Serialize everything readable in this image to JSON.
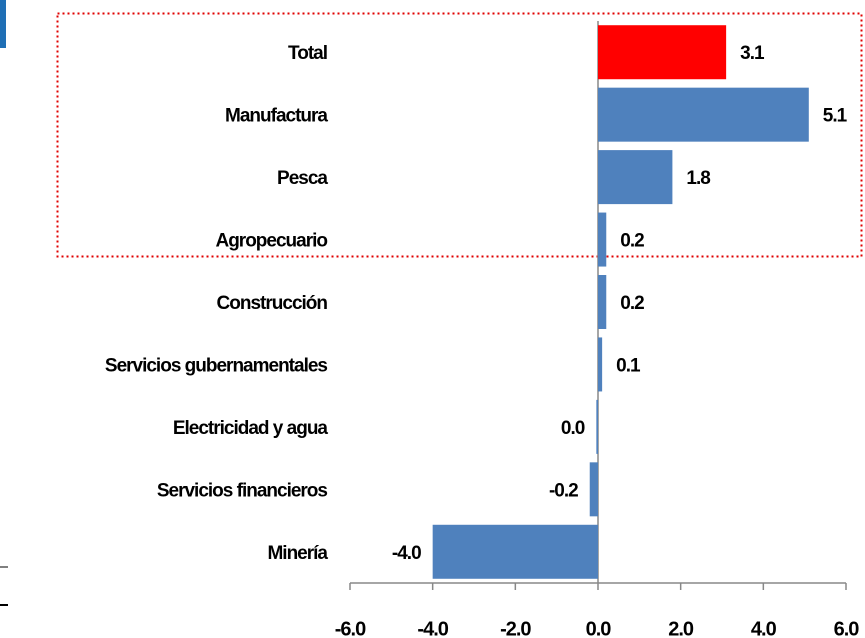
{
  "chart_data": {
    "type": "bar",
    "orientation": "horizontal",
    "categories": [
      "Total",
      "Manufactura",
      "Pesca",
      "Agropecuario",
      "Construcción",
      "Servicios gubernamentales",
      "Electricidad y agua",
      "Servicios financieros",
      "Minería"
    ],
    "values": [
      3.1,
      5.1,
      1.8,
      0.2,
      0.2,
      0.1,
      -0.04,
      -0.2,
      -4.0
    ],
    "value_labels": [
      "3.1",
      "5.1",
      "1.8",
      "0.2",
      "0.2",
      "0.1",
      "0.0",
      "-0.2",
      "-4.0"
    ],
    "colors": [
      "#ff0000",
      "#4f81bd",
      "#4f81bd",
      "#4f81bd",
      "#4f81bd",
      "#4f81bd",
      "#4f81bd",
      "#4f81bd",
      "#4f81bd"
    ],
    "xlim": [
      -6.0,
      6.0
    ],
    "xticks": [
      {
        "value": -6.0,
        "label": "-6.0"
      },
      {
        "value": -4.0,
        "label": "-4.0"
      },
      {
        "value": -2.0,
        "label": "-2.0"
      },
      {
        "value": 0.0,
        "label": "0.0"
      },
      {
        "value": 2.0,
        "label": "2.0"
      },
      {
        "value": 4.0,
        "label": "4.0"
      },
      {
        "value": 6.0,
        "label": "6.0"
      }
    ]
  }
}
